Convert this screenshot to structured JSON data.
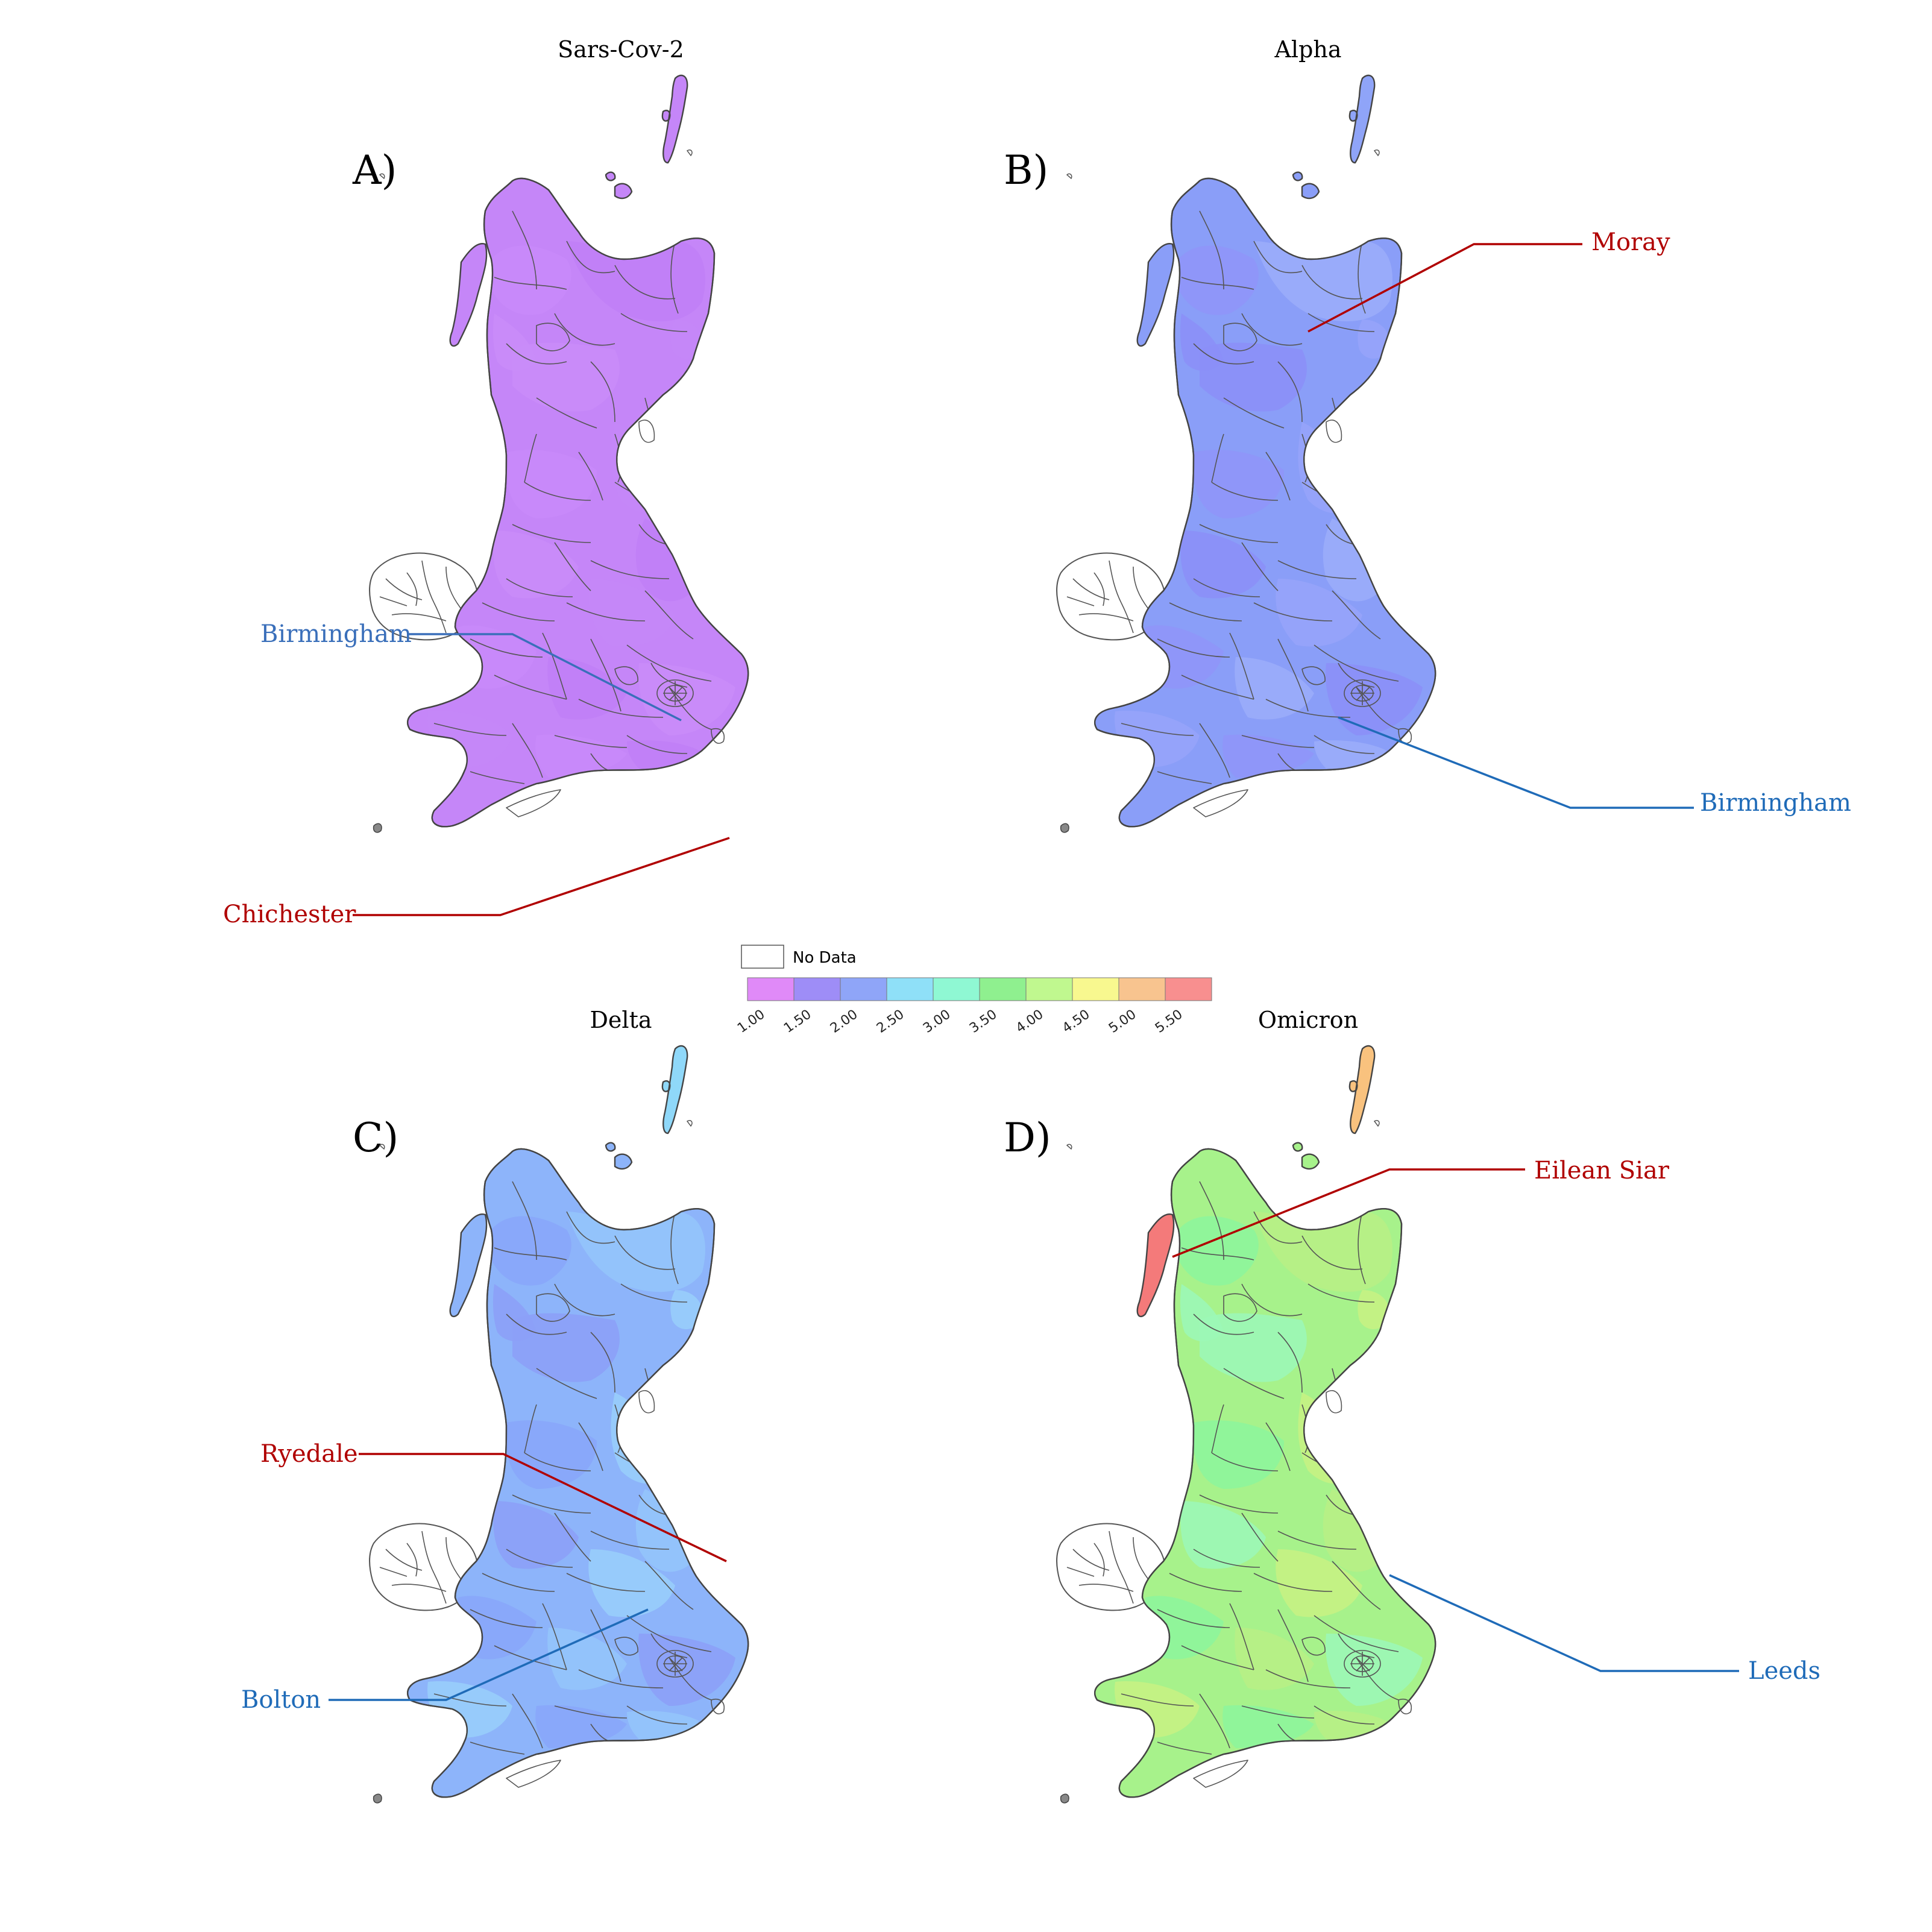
{
  "panels": [
    {
      "id": "A",
      "title": "Sars-Cov-2",
      "letter": "A)",
      "palette": [
        "#c586f8",
        "#c88af9",
        "#c07ff6",
        "#c98cf8",
        "#c487f7"
      ],
      "shetland_color": "#c586f8",
      "callouts": [
        {
          "text": "Birmingham",
          "color": "#3a6fba"
        },
        {
          "text": "Chichester",
          "color": "#b00000"
        }
      ]
    },
    {
      "id": "B",
      "title": "Alpha",
      "letter": "B)",
      "palette": [
        "#8a9ef8",
        "#8f95f8",
        "#9aacf9",
        "#8b8ff7",
        "#96a3f9"
      ],
      "shetland_color": "#8fa4f8",
      "callouts": [
        {
          "text": "Moray",
          "color": "#b00000"
        },
        {
          "text": "Birmingham",
          "color": "#1f6bb8"
        }
      ]
    },
    {
      "id": "C",
      "title": "Delta",
      "letter": "C)",
      "palette": [
        "#8db4fa",
        "#88a6f9",
        "#93c4fb",
        "#8ca0f7",
        "#98cdfb"
      ],
      "shetland_color": "#8fd8f9",
      "callouts": [
        {
          "text": "Ryedale",
          "color": "#b00000"
        },
        {
          "text": "Bolton",
          "color": "#1f6bb8"
        }
      ]
    },
    {
      "id": "D",
      "title": "Omicron",
      "letter": "D)",
      "palette": [
        "#a7f28b",
        "#8ef59b",
        "#b8f085",
        "#9cf7b6",
        "#c6f283"
      ],
      "shetland_color": "#f9c27e",
      "callouts": [
        {
          "text": "Eilean Siar",
          "color": "#b00000"
        },
        {
          "text": "Leeds",
          "color": "#1f6bb8"
        }
      ]
    }
  ],
  "legend": {
    "nodata_label": "No Data",
    "ticks": [
      "1.00",
      "1.50",
      "2.00",
      "2.50",
      "3.00",
      "3.50",
      "4.00",
      "4.50",
      "5.00",
      "5.50"
    ],
    "colors": [
      "#e08af8",
      "#9e8df7",
      "#8fa5f8",
      "#8fe0f8",
      "#8ff8d3",
      "#8ff08f",
      "#c0f88f",
      "#f8f88f",
      "#f8c48f",
      "#f88f8f"
    ]
  }
}
